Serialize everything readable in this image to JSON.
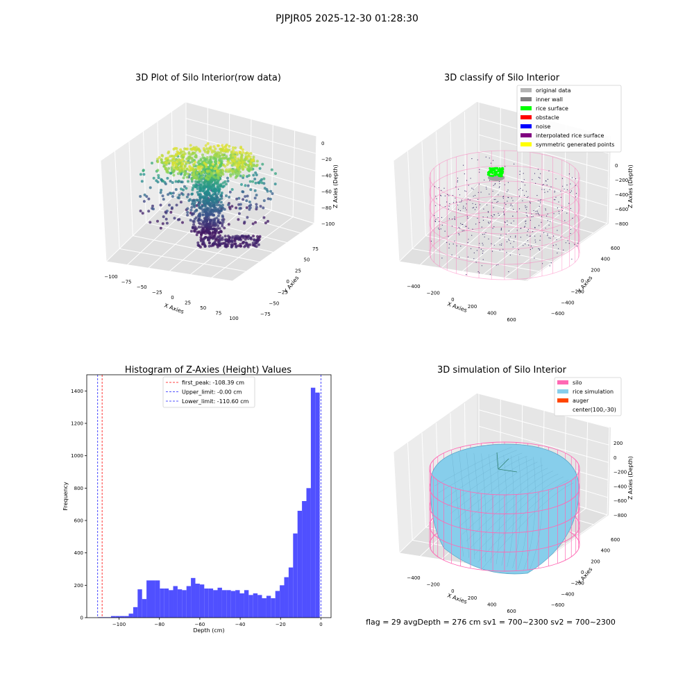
{
  "suptitle": "PJPJR05 2025-12-30 01:28:30",
  "footer_text": "flag = 29   avgDepth = 276 cm   sv1 = 700~2300   sv2 = 700~2300",
  "chart_data": [
    {
      "type": "scatter3d",
      "title": "3D Plot of Silo Interior(row data)",
      "xlabel": "X Axies",
      "ylabel": "Y Axies",
      "zlabel": "Z Axies (Depth)",
      "xticks": [
        "−100",
        "−75",
        "−50",
        "−25",
        "0",
        "25",
        "50",
        "75",
        "100"
      ],
      "yticks": [
        "−75",
        "−50",
        "−25",
        "0",
        "25",
        "50",
        "75"
      ],
      "zticks": [
        "0",
        "−20",
        "−40",
        "−60",
        "−80",
        "−100"
      ],
      "xlim": [
        -110,
        100
      ],
      "ylim": [
        -80,
        80
      ],
      "zlim": [
        -115,
        5
      ],
      "colormap": "viridis",
      "grid": true
    },
    {
      "type": "scatter3d",
      "title": "3D classify of Silo Interior",
      "xlabel": "X Axies",
      "ylabel": "Y Axies",
      "zlabel": "Z Axies (Depth)",
      "xticks": [
        "−400",
        "−200",
        "0",
        "200",
        "400",
        "600"
      ],
      "yticks": [
        "600",
        "400",
        "200",
        "0",
        "−200",
        "−400",
        "−600"
      ],
      "zticks": [
        "0",
        "−200",
        "−400",
        "−600",
        "−800"
      ],
      "legend_position": "top-right",
      "legend": [
        {
          "label": "original data",
          "color": "#b3b3b3"
        },
        {
          "label": "inner wall",
          "color": "#808080"
        },
        {
          "label": "rice surface",
          "color": "#00ff00"
        },
        {
          "label": "obstacle",
          "color": "#ff0000"
        },
        {
          "label": "noise",
          "color": "#0000ff"
        },
        {
          "label": "interpolated rice surface",
          "color": "#800080"
        },
        {
          "label": "symmetric generated points",
          "color": "#ffff00"
        }
      ],
      "wall_color": "#ff69b4",
      "grid": true
    },
    {
      "type": "bar",
      "title": "Histogram of Z-Axies (Height) Values",
      "xlabel": "Depth (cm)",
      "ylabel": "Frequency",
      "xlim": [
        -116,
        5
      ],
      "ylim": [
        0,
        1500
      ],
      "xticks": [
        -100,
        -80,
        -60,
        -40,
        -20,
        0
      ],
      "xtick_labels": [
        "−100",
        "−80",
        "−60",
        "−40",
        "−20",
        "0"
      ],
      "yticks": [
        0,
        200,
        400,
        600,
        800,
        1000,
        1200,
        1400
      ],
      "bar_color": "#5050ff",
      "bin_width": 2.2,
      "bins_start": -110.6,
      "values": [
        3,
        3,
        3,
        10,
        10,
        10,
        10,
        25,
        65,
        175,
        115,
        230,
        230,
        230,
        180,
        180,
        170,
        195,
        175,
        170,
        195,
        245,
        210,
        205,
        180,
        180,
        170,
        185,
        170,
        170,
        165,
        170,
        150,
        170,
        140,
        150,
        140,
        120,
        135,
        120,
        165,
        200,
        250,
        310,
        520,
        660,
        720,
        800,
        1420,
        1390
      ],
      "vlines": [
        {
          "x": -108.39,
          "color": "#ff0000",
          "label": "first_peak: -108.39 cm"
        },
        {
          "x": -0.0,
          "color": "#1a1aff",
          "label": "Upper_limit: -0.00 cm"
        },
        {
          "x": -110.6,
          "color": "#1a1aff",
          "label": "Lower_limit: -110.60 cm"
        }
      ],
      "legend_position": "top-center",
      "grid": false
    },
    {
      "type": "surface3d",
      "title": "3D simulation of Silo Interior",
      "xlabel": "X Axies",
      "ylabel": "Y Axies",
      "zlabel": "Z Axies (Depth)",
      "xticks": [
        "−400",
        "−200",
        "0",
        "200",
        "400",
        "600"
      ],
      "yticks": [
        "600",
        "400",
        "200",
        "0",
        "−200",
        "−400",
        "−600"
      ],
      "zticks": [
        "200",
        "0",
        "−200",
        "−400",
        "−600",
        "−800"
      ],
      "legend_position": "top-right",
      "legend": [
        {
          "label": "silo",
          "color": "#ff69b4"
        },
        {
          "label": "rice simulation",
          "color": "#87ceeb"
        },
        {
          "label": "auger",
          "color": "#ff4500"
        },
        {
          "label": "center(100,-30)",
          "color": ""
        }
      ],
      "grid": true
    }
  ]
}
